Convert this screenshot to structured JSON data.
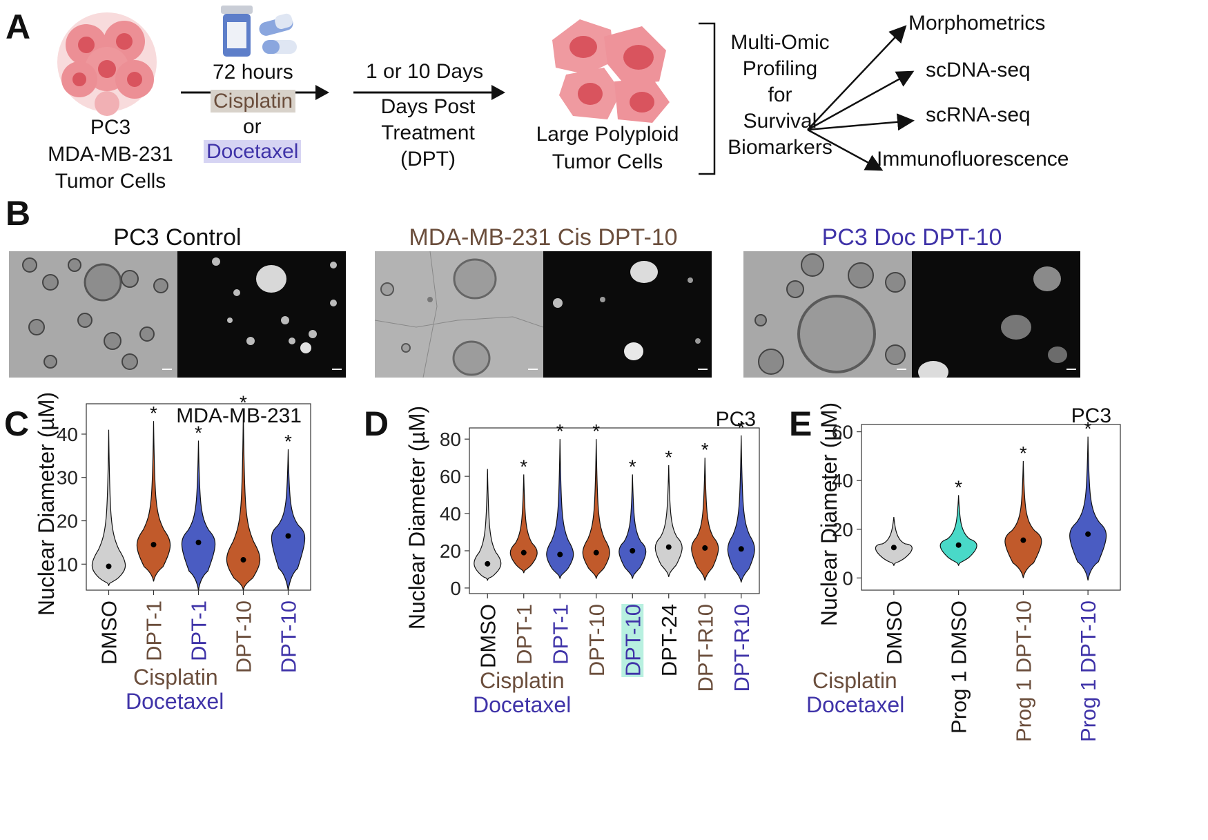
{
  "panelA": {
    "letter": "A",
    "cell_lines": [
      "PC3",
      "MDA-MB-231",
      "Tumor Cells"
    ],
    "treatment_time": "72 hours",
    "drug1": "Cisplatin",
    "or": "or",
    "drug2": "Docetaxel",
    "days_label": "1 or 10 Days",
    "dpt_lines": [
      "Days Post",
      "Treatment",
      "(DPT)"
    ],
    "outcome_lines": [
      "Large Polyploid",
      "Tumor Cells"
    ],
    "profiling_lines": [
      "Multi-Omic",
      "Profiling",
      "for",
      "Survival",
      "Biomarkers"
    ],
    "outputs": [
      "Morphometrics",
      "scDNA-seq",
      "scRNA-seq",
      "Immunofluorescence"
    ]
  },
  "panelB": {
    "letter": "B",
    "titles": [
      "PC3 Control",
      "MDA-MB-231 Cis DPT-10",
      "PC3 Doc DPT-10"
    ]
  },
  "legend": {
    "cisplatin": "Cisplatin",
    "docetaxel": "Docetaxel"
  },
  "colors": {
    "cisplatin": "#c15a2b",
    "docetaxel": "#4a5cc2",
    "dmso": "#d0d0d0",
    "prog_dmso": "#49d9c8",
    "cis_text": "#6b4e3c",
    "doc_text": "#3f33a8",
    "highlight": "#b8f0e0"
  },
  "chart_data": [
    {
      "letter": "C",
      "type": "violin",
      "title": "MDA-MB-231",
      "ylabel": "Nuclear Diameter (µM)",
      "ylim": [
        4,
        47
      ],
      "yticks": [
        10,
        20,
        30,
        40
      ],
      "categories": [
        "DMSO",
        "DPT-1",
        "DPT-1",
        "DPT-10",
        "DPT-10"
      ],
      "groups": [
        "dmso",
        "cisplatin",
        "docetaxel",
        "cisplatin",
        "docetaxel"
      ],
      "medians": [
        9.5,
        14.5,
        15,
        11,
        16.5
      ],
      "min": [
        5,
        6,
        4,
        4,
        4
      ],
      "max": [
        41,
        43,
        38.5,
        45.5,
        36.5
      ],
      "significance": [
        "",
        "*",
        "*",
        "*",
        "*"
      ]
    },
    {
      "letter": "D",
      "type": "violin",
      "title": "PC3",
      "ylabel": "Nuclear Diameter (µM)",
      "ylim": [
        -3,
        86
      ],
      "yticks": [
        0,
        20,
        40,
        60,
        80
      ],
      "categories": [
        "DMSO",
        "DPT-1",
        "DPT-1",
        "DPT-10",
        "DPT-10",
        "DPT-24",
        "DPT-R10",
        "DPT-R10"
      ],
      "groups": [
        "dmso",
        "cisplatin",
        "docetaxel",
        "cisplatin",
        "docetaxel",
        "dmso",
        "cisplatin",
        "docetaxel"
      ],
      "highlighted": [
        false,
        false,
        false,
        false,
        true,
        false,
        false,
        false
      ],
      "medians": [
        13,
        19,
        18,
        19,
        20,
        22,
        21.5,
        21
      ],
      "min": [
        4,
        8,
        5,
        5,
        5,
        6,
        4,
        3
      ],
      "max": [
        64,
        61,
        80,
        80,
        61,
        66,
        70,
        82
      ],
      "significance": [
        "",
        "*",
        "*",
        "*",
        "*",
        "*",
        "*",
        "*"
      ]
    },
    {
      "letter": "E",
      "type": "violin",
      "title": "PC3",
      "ylabel": "Nuclear Diameter (µM)",
      "ylim": [
        -5,
        63
      ],
      "yticks": [
        0,
        20,
        40,
        60
      ],
      "categories": [
        "DMSO",
        "Prog 1 DMSO",
        "Prog 1 DPT-10",
        "Prog 1 DPT-10"
      ],
      "groups": [
        "dmso",
        "prog_dmso",
        "cisplatin",
        "docetaxel"
      ],
      "medians": [
        12.5,
        13.5,
        15.5,
        18
      ],
      "min": [
        5,
        5,
        0,
        -1
      ],
      "max": [
        25,
        34,
        48,
        58
      ],
      "significance": [
        "",
        "*",
        "*",
        "*"
      ]
    }
  ]
}
